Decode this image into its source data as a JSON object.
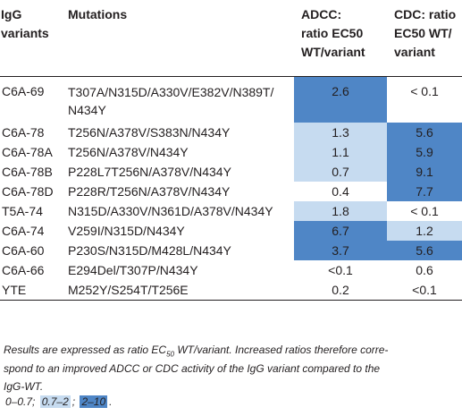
{
  "header": {
    "col1": [
      "IgG",
      "variants"
    ],
    "col2": "Mutations",
    "col3": [
      "ADCC:",
      "ratio EC50",
      "WT/variant"
    ],
    "col4": [
      "CDC: ratio",
      "EC50 WT/",
      "variant"
    ]
  },
  "rows": [
    {
      "variant": "C6A-69",
      "mutations": [
        "T307A/N315D/A330V/E382V/N389T/",
        "N434Y"
      ],
      "adcc": "2.6",
      "cdc": "< 0.1",
      "adcc_level": "high",
      "cdc_level": "none"
    },
    {
      "variant": "C6A-78",
      "mutations": [
        "T256N/A378V/S383N/N434Y"
      ],
      "adcc": "1.3",
      "cdc": "5.6",
      "adcc_level": "mid",
      "cdc_level": "high"
    },
    {
      "variant": "C6A-78A",
      "mutations": [
        "T256N/A378V/N434Y"
      ],
      "adcc": "1.1",
      "cdc": "5.9",
      "adcc_level": "mid",
      "cdc_level": "high"
    },
    {
      "variant": "C6A-78B",
      "mutations": [
        "P228L7T256N/A378V/N434Y"
      ],
      "adcc": "0.7",
      "cdc": "9.1",
      "adcc_level": "mid",
      "cdc_level": "high"
    },
    {
      "variant": "C6A-78D",
      "mutations": [
        "P228R/T256N/A378V/N434Y"
      ],
      "adcc": "0.4",
      "cdc": "7.7",
      "adcc_level": "none",
      "cdc_level": "high"
    },
    {
      "variant": "T5A-74",
      "mutations": [
        "N315D/A330V/N361D/A378V/N434Y"
      ],
      "adcc": "1.8",
      "cdc": "< 0.1",
      "adcc_level": "mid",
      "cdc_level": "none"
    },
    {
      "variant": "C6A-74",
      "mutations": [
        "V259I/N315D/N434Y"
      ],
      "adcc": "6.7",
      "cdc": "1.2",
      "adcc_level": "high",
      "cdc_level": "mid"
    },
    {
      "variant": "C6A-60",
      "mutations": [
        "P230S/N315D/M428L/N434Y"
      ],
      "adcc": "3.7",
      "cdc": "5.6",
      "adcc_level": "high",
      "cdc_level": "high"
    },
    {
      "variant": "C6A-66",
      "mutations": [
        "E294Del/T307P/N434Y"
      ],
      "adcc": "<0.1",
      "cdc": "0.6",
      "adcc_level": "none",
      "cdc_level": "none"
    },
    {
      "variant": "YTE",
      "mutations": [
        "M252Y/S254T/T256E"
      ],
      "adcc": "0.2",
      "cdc": "<0.1",
      "adcc_level": "none",
      "cdc_level": "none"
    }
  ],
  "colors": {
    "none": "#ffffff",
    "mid": "#c6dbf0",
    "high": "#4f86c6"
  },
  "caption": {
    "line1_pre": "Results are expressed as ratio EC",
    "line1_sub": "50",
    "line1_post": " WT/variant. Increased ratios therefore corre-",
    "line2": "spond to an improved ADCC or CDC activity of the IgG variant compared to the",
    "line3": "IgG-WT."
  },
  "legend": {
    "none": "0–0.7;",
    "mid": "0.7–2",
    "sep": ";",
    "high": "2–10",
    "end": "."
  }
}
